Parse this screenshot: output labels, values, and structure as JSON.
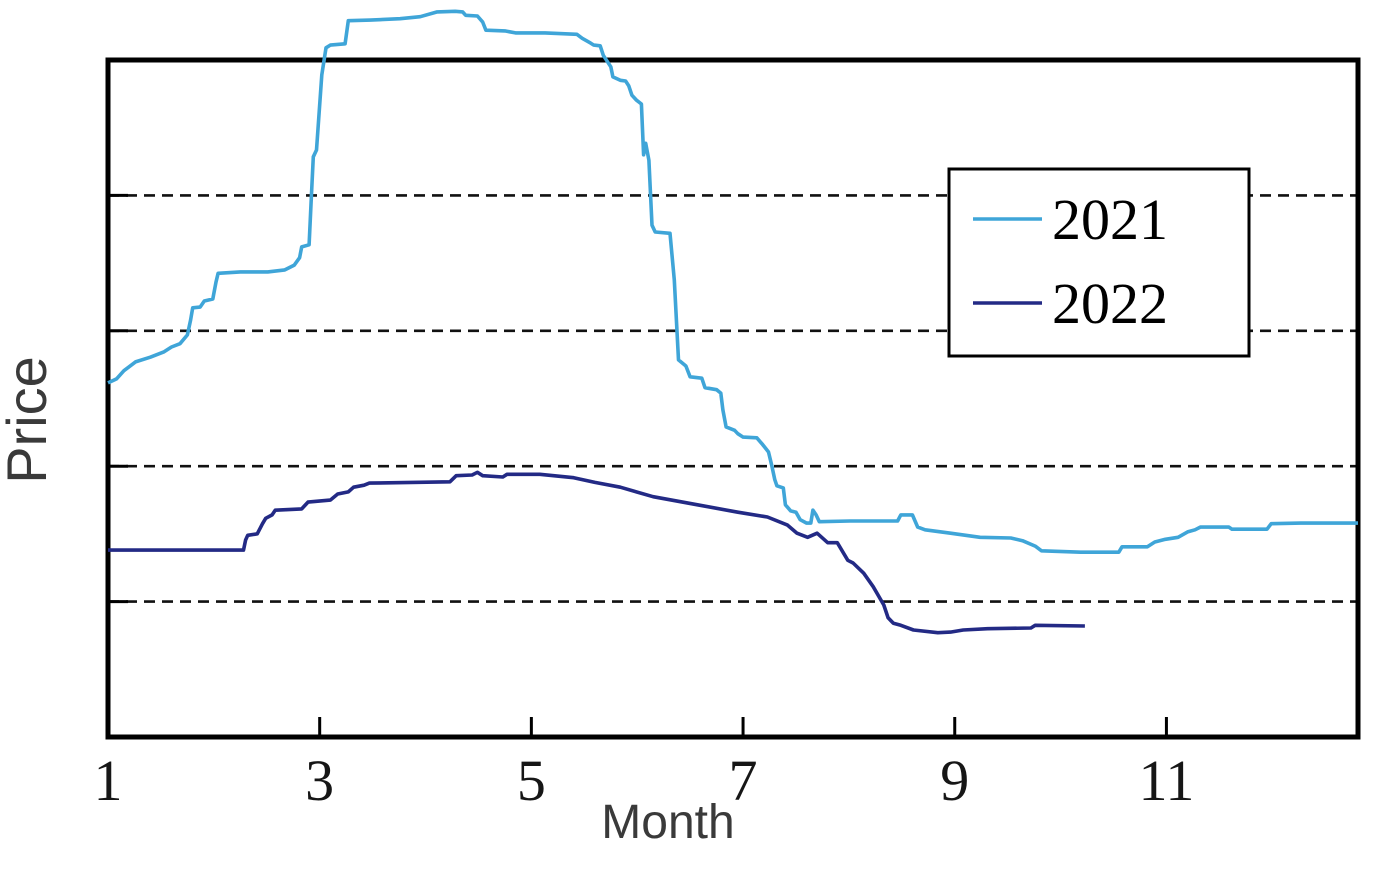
{
  "figure": {
    "background": "#ffffff",
    "frame_color": "#000000",
    "gridline_color": "#111111"
  },
  "chart_data": {
    "type": "line",
    "title": "",
    "xlabel": "Month",
    "ylabel": "Price",
    "x_axis": {
      "range": [
        1,
        12.81
      ],
      "ticks": [
        1,
        3,
        5,
        7,
        9,
        11
      ],
      "tick_labels": [
        "1",
        "3",
        "5",
        "7",
        "9",
        "11"
      ]
    },
    "y_axis": {
      "range": [
        0,
        100
      ],
      "ticks": [
        20,
        40,
        60,
        80
      ],
      "tick_labels": [],
      "note": "y-axis has no numeric labels; values on 0-100 scale inferred from the four dashed gridlines at 20/40/60/80"
    },
    "grid": {
      "horizontal_dashed": true,
      "vertical": false
    },
    "legend": {
      "position": "upper right",
      "entries": [
        {
          "label": "2021",
          "color": "#3fa5d8"
        },
        {
          "label": "2022",
          "color": "#232a85"
        }
      ]
    },
    "series": [
      {
        "name": "2021",
        "color": "#3fa5d8",
        "points": [
          [
            1.0,
            52.3
          ],
          [
            1.08,
            52.9
          ],
          [
            1.15,
            54.1
          ],
          [
            1.26,
            55.4
          ],
          [
            1.4,
            56.1
          ],
          [
            1.53,
            56.9
          ],
          [
            1.6,
            57.6
          ],
          [
            1.68,
            58.1
          ],
          [
            1.75,
            59.4
          ],
          [
            1.78,
            61.6
          ],
          [
            1.8,
            63.4
          ],
          [
            1.87,
            63.5
          ],
          [
            1.91,
            64.4
          ],
          [
            1.99,
            64.7
          ],
          [
            2.02,
            67.2
          ],
          [
            2.04,
            68.5
          ],
          [
            2.25,
            68.7
          ],
          [
            2.51,
            68.7
          ],
          [
            2.67,
            69.0
          ],
          [
            2.76,
            69.7
          ],
          [
            2.81,
            70.8
          ],
          [
            2.83,
            72.4
          ],
          [
            2.9,
            72.7
          ],
          [
            2.92,
            79.3
          ],
          [
            2.94,
            85.7
          ],
          [
            2.97,
            86.7
          ],
          [
            2.99,
            91.1
          ],
          [
            3.02,
            97.8
          ],
          [
            3.06,
            101.8
          ],
          [
            3.1,
            102.2
          ],
          [
            3.24,
            102.4
          ],
          [
            3.27,
            105.8
          ],
          [
            3.48,
            105.9
          ],
          [
            3.76,
            106.1
          ],
          [
            3.95,
            106.4
          ],
          [
            4.11,
            107.1
          ],
          [
            4.28,
            107.2
          ],
          [
            4.35,
            107.1
          ],
          [
            4.38,
            106.6
          ],
          [
            4.49,
            106.5
          ],
          [
            4.54,
            105.6
          ],
          [
            4.57,
            104.4
          ],
          [
            4.75,
            104.3
          ],
          [
            4.85,
            104.0
          ],
          [
            5.13,
            104.0
          ],
          [
            5.43,
            103.8
          ],
          [
            5.48,
            103.2
          ],
          [
            5.56,
            102.5
          ],
          [
            5.59,
            102.2
          ],
          [
            5.65,
            102.1
          ],
          [
            5.68,
            100.7
          ],
          [
            5.75,
            99.0
          ],
          [
            5.77,
            97.5
          ],
          [
            5.84,
            97.0
          ],
          [
            5.89,
            96.9
          ],
          [
            5.92,
            96.2
          ],
          [
            5.95,
            94.8
          ],
          [
            5.99,
            94.1
          ],
          [
            6.04,
            93.5
          ],
          [
            6.06,
            86.0
          ],
          [
            6.08,
            87.7
          ],
          [
            6.11,
            85.2
          ],
          [
            6.14,
            75.6
          ],
          [
            6.17,
            74.6
          ],
          [
            6.31,
            74.4
          ],
          [
            6.35,
            67.5
          ],
          [
            6.39,
            55.7
          ],
          [
            6.46,
            54.8
          ],
          [
            6.5,
            53.2
          ],
          [
            6.61,
            53.0
          ],
          [
            6.64,
            51.6
          ],
          [
            6.75,
            51.3
          ],
          [
            6.79,
            50.8
          ],
          [
            6.81,
            48.3
          ],
          [
            6.84,
            45.8
          ],
          [
            6.92,
            45.3
          ],
          [
            6.95,
            44.8
          ],
          [
            7.0,
            44.3
          ],
          [
            7.13,
            44.2
          ],
          [
            7.18,
            43.3
          ],
          [
            7.24,
            42.1
          ],
          [
            7.27,
            40.2
          ],
          [
            7.3,
            38.0
          ],
          [
            7.32,
            37.1
          ],
          [
            7.38,
            36.8
          ],
          [
            7.4,
            34.3
          ],
          [
            7.45,
            33.4
          ],
          [
            7.5,
            33.2
          ],
          [
            7.54,
            32.1
          ],
          [
            7.6,
            31.6
          ],
          [
            7.64,
            31.6
          ],
          [
            7.66,
            33.5
          ],
          [
            7.69,
            32.8
          ],
          [
            7.72,
            31.8
          ],
          [
            8.01,
            31.9
          ],
          [
            8.46,
            31.9
          ],
          [
            8.49,
            32.8
          ],
          [
            8.6,
            32.8
          ],
          [
            8.65,
            31.0
          ],
          [
            8.72,
            30.6
          ],
          [
            8.96,
            30.1
          ],
          [
            9.24,
            29.5
          ],
          [
            9.53,
            29.4
          ],
          [
            9.64,
            29.0
          ],
          [
            9.76,
            28.2
          ],
          [
            9.82,
            27.5
          ],
          [
            10.19,
            27.3
          ],
          [
            10.55,
            27.3
          ],
          [
            10.58,
            28.1
          ],
          [
            10.82,
            28.1
          ],
          [
            10.89,
            28.8
          ],
          [
            10.99,
            29.2
          ],
          [
            11.11,
            29.5
          ],
          [
            11.2,
            30.3
          ],
          [
            11.27,
            30.6
          ],
          [
            11.32,
            31.0
          ],
          [
            11.59,
            31.0
          ],
          [
            11.62,
            30.7
          ],
          [
            11.95,
            30.7
          ],
          [
            11.99,
            31.5
          ],
          [
            12.27,
            31.6
          ],
          [
            12.81,
            31.6
          ]
        ]
      },
      {
        "name": "2022",
        "color": "#232a85",
        "points": [
          [
            1.0,
            27.6
          ],
          [
            2.28,
            27.6
          ],
          [
            2.3,
            29.1
          ],
          [
            2.32,
            29.8
          ],
          [
            2.41,
            30.0
          ],
          [
            2.46,
            31.5
          ],
          [
            2.49,
            32.3
          ],
          [
            2.55,
            32.8
          ],
          [
            2.58,
            33.5
          ],
          [
            2.83,
            33.7
          ],
          [
            2.89,
            34.7
          ],
          [
            3.1,
            35.0
          ],
          [
            3.17,
            35.9
          ],
          [
            3.27,
            36.2
          ],
          [
            3.32,
            36.9
          ],
          [
            3.42,
            37.2
          ],
          [
            3.47,
            37.5
          ],
          [
            4.23,
            37.7
          ],
          [
            4.29,
            38.6
          ],
          [
            4.44,
            38.7
          ],
          [
            4.49,
            39.1
          ],
          [
            4.54,
            38.6
          ],
          [
            4.73,
            38.4
          ],
          [
            4.77,
            38.8
          ],
          [
            5.08,
            38.8
          ],
          [
            5.4,
            38.3
          ],
          [
            5.6,
            37.6
          ],
          [
            5.84,
            36.9
          ],
          [
            6.15,
            35.5
          ],
          [
            6.57,
            34.3
          ],
          [
            6.95,
            33.2
          ],
          [
            7.23,
            32.5
          ],
          [
            7.42,
            31.3
          ],
          [
            7.51,
            30.1
          ],
          [
            7.61,
            29.5
          ],
          [
            7.7,
            30.1
          ],
          [
            7.8,
            28.7
          ],
          [
            7.89,
            28.7
          ],
          [
            7.99,
            26.1
          ],
          [
            8.04,
            25.7
          ],
          [
            8.14,
            24.2
          ],
          [
            8.23,
            22.2
          ],
          [
            8.33,
            19.5
          ],
          [
            8.37,
            17.6
          ],
          [
            8.42,
            16.8
          ],
          [
            8.49,
            16.5
          ],
          [
            8.61,
            15.8
          ],
          [
            8.84,
            15.4
          ],
          [
            8.96,
            15.5
          ],
          [
            9.08,
            15.8
          ],
          [
            9.31,
            16.0
          ],
          [
            9.72,
            16.1
          ],
          [
            9.76,
            16.5
          ],
          [
            10.23,
            16.4
          ]
        ]
      }
    ]
  }
}
